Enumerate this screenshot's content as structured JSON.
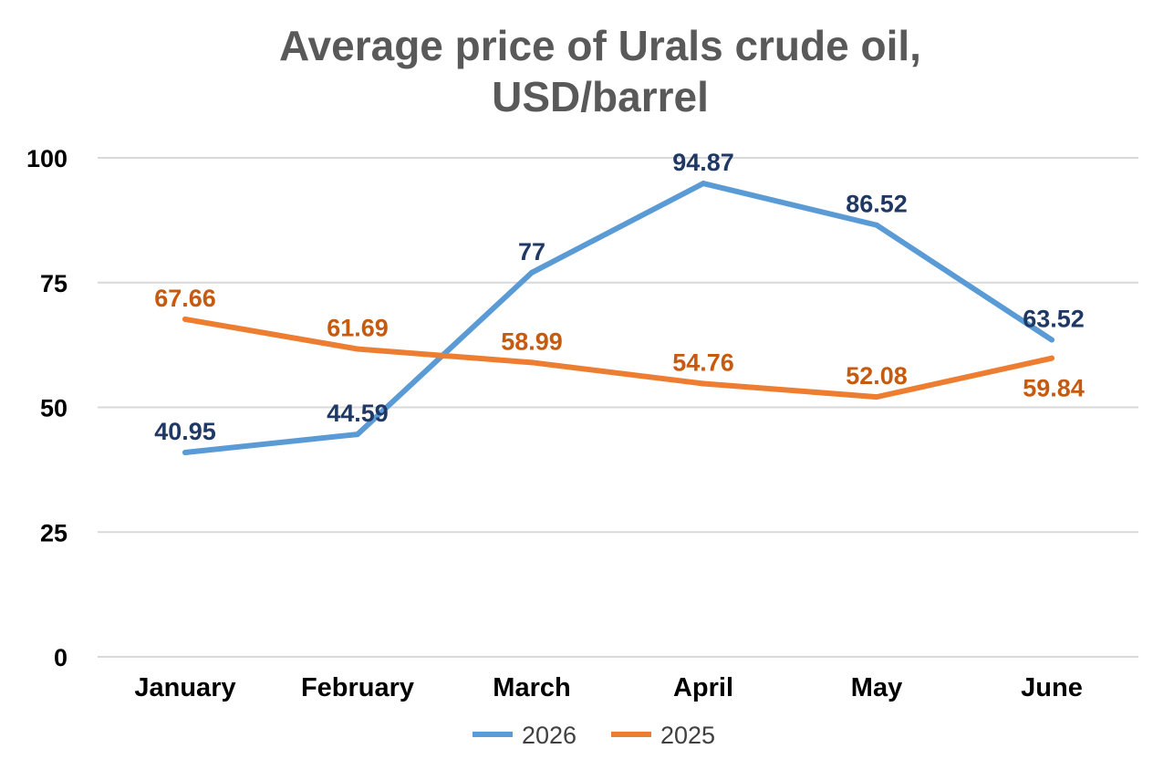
{
  "chart_data": {
    "type": "line",
    "title": [
      "Average price of Urals crude oil,",
      "USD/barrel"
    ],
    "categories": [
      "January",
      "February",
      "March",
      "April",
      "May",
      "June"
    ],
    "ylim": [
      0,
      100
    ],
    "yticks": [
      0,
      25,
      50,
      75,
      100
    ],
    "grid": true,
    "legend_position": "bottom",
    "series": [
      {
        "name": "2026",
        "values": [
          40.95,
          44.59,
          77,
          94.87,
          86.52,
          63.52
        ],
        "labels": [
          "40.95",
          "44.59",
          "77",
          "94.87",
          "86.52",
          "63.52"
        ],
        "color": "#5B9BD5",
        "label_color": "#1F3864"
      },
      {
        "name": "2025",
        "values": [
          67.66,
          61.69,
          58.99,
          54.76,
          52.08,
          59.84
        ],
        "labels": [
          "67.66",
          "61.69",
          "58.99",
          "54.76",
          "52.08",
          "59.84"
        ],
        "color": "#ED7D31",
        "label_color": "#C55A11"
      }
    ]
  }
}
